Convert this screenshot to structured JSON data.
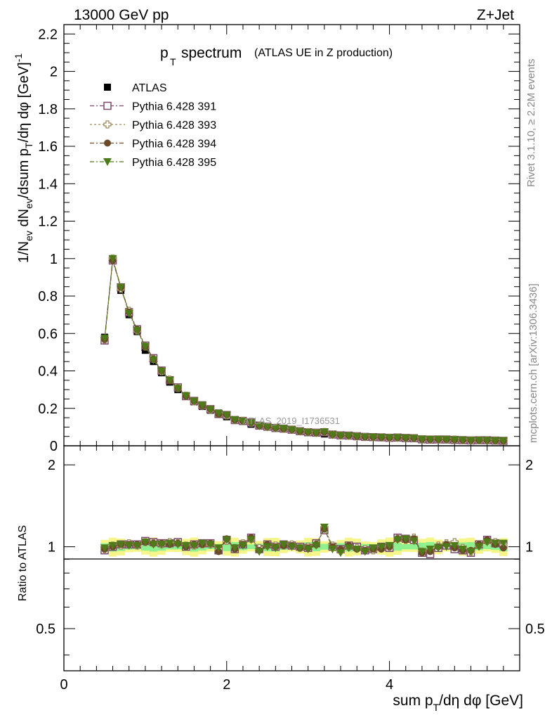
{
  "header": {
    "energy_label": "13000 GeV pp",
    "process_label": "Z+Jet"
  },
  "side_labels": {
    "rivet": "Rivet 3.1.10, ≥ 2.2M events",
    "mcplots": "mcplots.cern.ch [arXiv:1306.3436]"
  },
  "watermark": "ATLAS_2019_I1736531",
  "colors": {
    "data": "#000000",
    "pythia391": "#7b4a6b",
    "pythia393": "#a08a5a",
    "pythia394": "#6b4a2a",
    "pythia395": "#4f7a1a",
    "band_inner": "#8ef08e",
    "band_outer": "#f5f58a"
  },
  "chart_data": {
    "type": "scatter",
    "title_main": "p",
    "title_sub": "T",
    "title_rest": "spectrum",
    "title_note": "(ATLAS UE in Z production)",
    "xlabel": "sum p_T/dη dφ [GeV]",
    "ylabel": "1/N_ev dN_ev/dsum p_T/dη dφ [GeV]^-1",
    "ratio_ylabel": "Ratio to ATLAS",
    "xlim": [
      0,
      5.6
    ],
    "ylim": [
      0,
      2.25
    ],
    "ratio_ylim": [
      0.35,
      2.35
    ],
    "xticks": [
      "0",
      "2",
      "4"
    ],
    "yticks": [
      "0",
      "0.2",
      "0.4",
      "0.6",
      "0.8",
      "1",
      "1.2",
      "1.4",
      "1.6",
      "1.8",
      "2",
      "2.2"
    ],
    "ratio_yticks": [
      "0.5",
      "1",
      "2"
    ],
    "legend_position": "top-left",
    "legend": [
      {
        "name": "ATLAS",
        "marker": "filled-square"
      },
      {
        "name": "Pythia 6.428 391",
        "marker": "open-square"
      },
      {
        "name": "Pythia 6.428 393",
        "marker": "open-cross"
      },
      {
        "name": "Pythia 6.428 394",
        "marker": "filled-circle"
      },
      {
        "name": "Pythia 6.428 395",
        "marker": "filled-triangle-down"
      }
    ],
    "x": [
      0.5,
      0.6,
      0.7,
      0.8,
      0.9,
      1.0,
      1.1,
      1.2,
      1.3,
      1.4,
      1.5,
      1.6,
      1.7,
      1.8,
      1.9,
      2.0,
      2.1,
      2.2,
      2.3,
      2.4,
      2.5,
      2.6,
      2.7,
      2.8,
      2.9,
      3.0,
      3.1,
      3.2,
      3.3,
      3.4,
      3.5,
      3.6,
      3.7,
      3.8,
      3.9,
      4.0,
      4.1,
      4.2,
      4.3,
      4.4,
      4.5,
      4.6,
      4.7,
      4.8,
      4.9,
      5.0,
      5.1,
      5.2,
      5.3,
      5.4
    ],
    "atlas_values": [
      0.58,
      0.99,
      0.83,
      0.7,
      0.61,
      0.51,
      0.45,
      0.39,
      0.34,
      0.3,
      0.265,
      0.235,
      0.21,
      0.19,
      0.175,
      0.155,
      0.14,
      0.13,
      0.115,
      0.11,
      0.1,
      0.095,
      0.09,
      0.085,
      0.078,
      0.073,
      0.068,
      0.063,
      0.06,
      0.057,
      0.054,
      0.051,
      0.049,
      0.047,
      0.045,
      0.043,
      0.041,
      0.039,
      0.038,
      0.036,
      0.035,
      0.034,
      0.033,
      0.032,
      0.031,
      0.03,
      0.029,
      0.028,
      0.027,
      0.026
    ],
    "atlas_band_inner": 0.03,
    "atlas_band_outer": 0.06,
    "series": [
      {
        "name": "Pythia 6.428 391",
        "ratio": [
          0.97,
          1.0,
          1.02,
          1.02,
          1.02,
          1.05,
          1.04,
          1.03,
          1.03,
          1.04,
          1.0,
          1.02,
          1.03,
          1.03,
          0.97,
          1.06,
          0.98,
          1.02,
          1.08,
          0.98,
          1.02,
          1.0,
          1.02,
          1.01,
          1.0,
          0.99,
          1.03,
          1.15,
          1.0,
          0.98,
          1.01,
          1.0,
          0.97,
          0.98,
          1.0,
          0.99,
          1.08,
          1.07,
          1.06,
          0.95,
          0.94,
          0.99,
          1.01,
          0.98,
          0.97,
          0.95,
          1.02,
          1.06,
          1.03,
          1.02
        ]
      },
      {
        "name": "Pythia 6.428 393",
        "ratio": [
          0.98,
          1.01,
          1.01,
          1.03,
          1.01,
          1.04,
          1.03,
          1.02,
          1.04,
          1.03,
          1.01,
          1.01,
          1.02,
          1.02,
          0.98,
          1.05,
          0.99,
          1.03,
          1.07,
          0.99,
          1.01,
          1.01,
          1.01,
          1.02,
          0.99,
          1.0,
          1.02,
          1.17,
          1.01,
          0.97,
          1.0,
          0.99,
          0.98,
          0.97,
          0.99,
          1.0,
          1.07,
          1.06,
          1.08,
          0.96,
          0.97,
          1.01,
          1.03,
          1.04,
          0.99,
          0.96,
          1.01,
          1.05,
          1.04,
          1.01
        ]
      },
      {
        "name": "Pythia 6.428 394",
        "ratio": [
          0.98,
          1.0,
          1.02,
          1.02,
          1.02,
          1.04,
          1.03,
          1.03,
          1.02,
          1.03,
          1.0,
          1.02,
          1.02,
          1.03,
          0.96,
          1.07,
          0.98,
          1.02,
          1.08,
          0.97,
          1.02,
          1.0,
          1.01,
          1.01,
          0.99,
          0.99,
          1.02,
          1.16,
          1.0,
          0.98,
          1.01,
          0.98,
          0.97,
          0.98,
          0.98,
          1.0,
          1.07,
          1.06,
          1.07,
          0.95,
          0.96,
          1.0,
          1.02,
          0.99,
          0.97,
          0.97,
          1.02,
          1.06,
          1.02,
          0.99
        ]
      },
      {
        "name": "Pythia 6.428 395",
        "ratio": [
          0.99,
          1.01,
          1.02,
          1.01,
          1.01,
          1.04,
          1.02,
          1.02,
          1.03,
          1.02,
          1.01,
          1.01,
          1.03,
          1.02,
          0.99,
          1.06,
          0.99,
          1.01,
          1.06,
          0.96,
          1.0,
          0.99,
          1.02,
          1.0,
          0.99,
          0.98,
          1.01,
          1.18,
          0.98,
          0.95,
          0.99,
          0.98,
          0.96,
          0.99,
          1.0,
          1.01,
          1.06,
          1.07,
          1.05,
          0.96,
          0.98,
          0.99,
          1.0,
          1.01,
          0.98,
          0.96,
          1.0,
          1.04,
          1.03,
          1.03
        ]
      }
    ]
  }
}
